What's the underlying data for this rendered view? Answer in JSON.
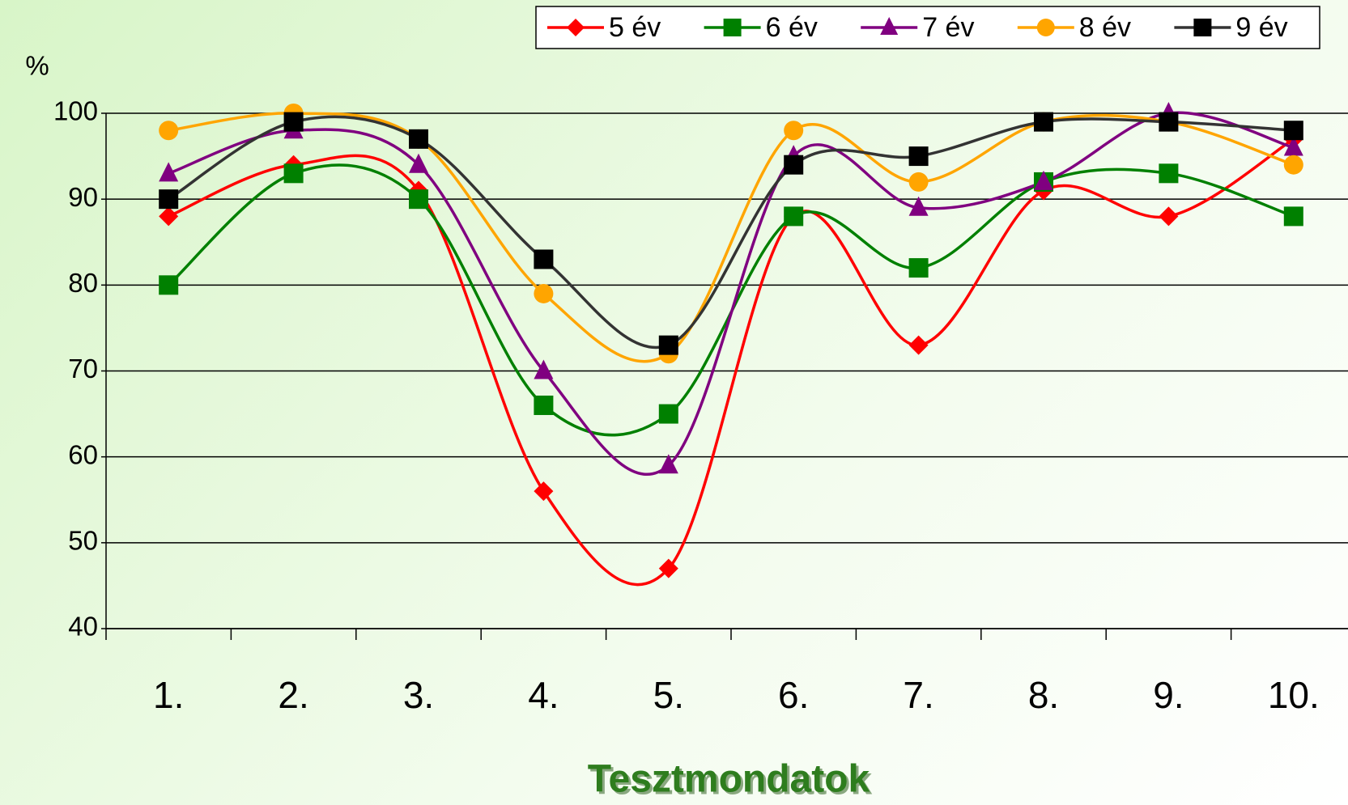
{
  "chart_data": {
    "type": "line",
    "smooth": true,
    "x_label": "Tesztmondatok",
    "y_label": "%",
    "categories": [
      "1.",
      "2.",
      "3.",
      "4.",
      "5.",
      "6.",
      "7.",
      "8.",
      "9.",
      "10."
    ],
    "series": [
      {
        "name": "5 év",
        "color": "#ff0000",
        "marker": "diamond",
        "values": [
          88,
          94,
          91,
          56,
          47,
          88,
          73,
          91,
          88,
          97
        ]
      },
      {
        "name": "6 év",
        "color": "#008000",
        "marker": "square",
        "values": [
          80,
          93,
          90,
          66,
          65,
          88,
          82,
          92,
          93,
          88
        ]
      },
      {
        "name": "7 év",
        "color": "#800080",
        "marker": "triangle",
        "values": [
          93,
          98,
          94,
          70,
          59,
          95,
          89,
          92,
          100,
          96
        ]
      },
      {
        "name": "8 év",
        "color": "#ffa500",
        "marker": "circle",
        "values": [
          98,
          100,
          97,
          79,
          72,
          98,
          92,
          99,
          99,
          94
        ]
      },
      {
        "name": "9 év",
        "color": "#000000",
        "marker": "square",
        "values": [
          90,
          99,
          97,
          83,
          73,
          94,
          95,
          99,
          99,
          98
        ]
      }
    ],
    "ylim": [
      40,
      100
    ],
    "yticks": [
      40,
      50,
      60,
      70,
      80,
      90,
      100
    ],
    "grid": true,
    "legend": "top-right"
  }
}
